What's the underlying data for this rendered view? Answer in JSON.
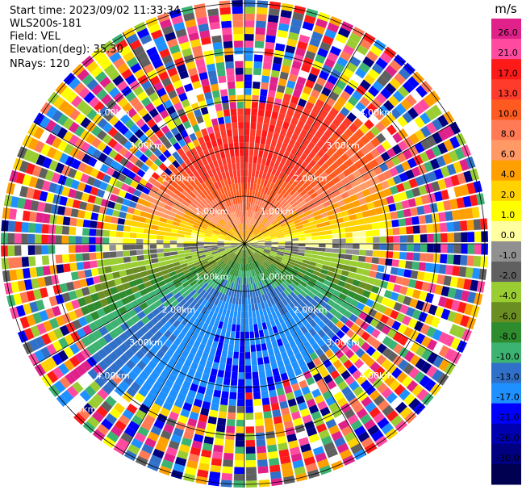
{
  "header": {
    "start_time": "Start time: 2023/09/02 11:33:34",
    "instrument": "WLS200s-181",
    "field": "Field: VEL",
    "elevation": "Elevation(deg): 35.30",
    "nrays": "NRays: 120"
  },
  "chart_data": {
    "type": "heatmap",
    "subtype": "ppi-polar",
    "n_rays": 120,
    "range_ring_labels": [
      "1.00km",
      "2.00km",
      "3.00km",
      "4.00km",
      "5.00km"
    ],
    "range_rings_km": [
      1,
      2,
      3,
      4,
      5
    ],
    "colorbar": {
      "unit": "m/s",
      "ticks": [
        "26.0",
        "21.0",
        "17.0",
        "13.0",
        "10.0",
        "8.0",
        "6.0",
        "4.0",
        "2.0",
        "1.0",
        "0.0",
        "-1.0",
        "-2.0",
        "-4.0",
        "-6.0",
        "-8.0",
        "-10.0",
        "-13.0",
        "-17.0",
        "-21.0",
        "-26.0",
        "-30.0"
      ],
      "colors": [
        "#e0218a",
        "#ff4aa0",
        "#ff1a1a",
        "#ff3b2b",
        "#ff5a20",
        "#ff7a55",
        "#ff9966",
        "#ff9f00",
        "#ffd200",
        "#ffff00",
        "#ffffa0",
        "#909090",
        "#606060",
        "#9acd32",
        "#6b8e23",
        "#2e8b2e",
        "#3cb371",
        "#3070c8",
        "#1e90ff",
        "#0000ff",
        "#0000b0",
        "#000080",
        "#000050"
      ]
    },
    "grid": true
  }
}
